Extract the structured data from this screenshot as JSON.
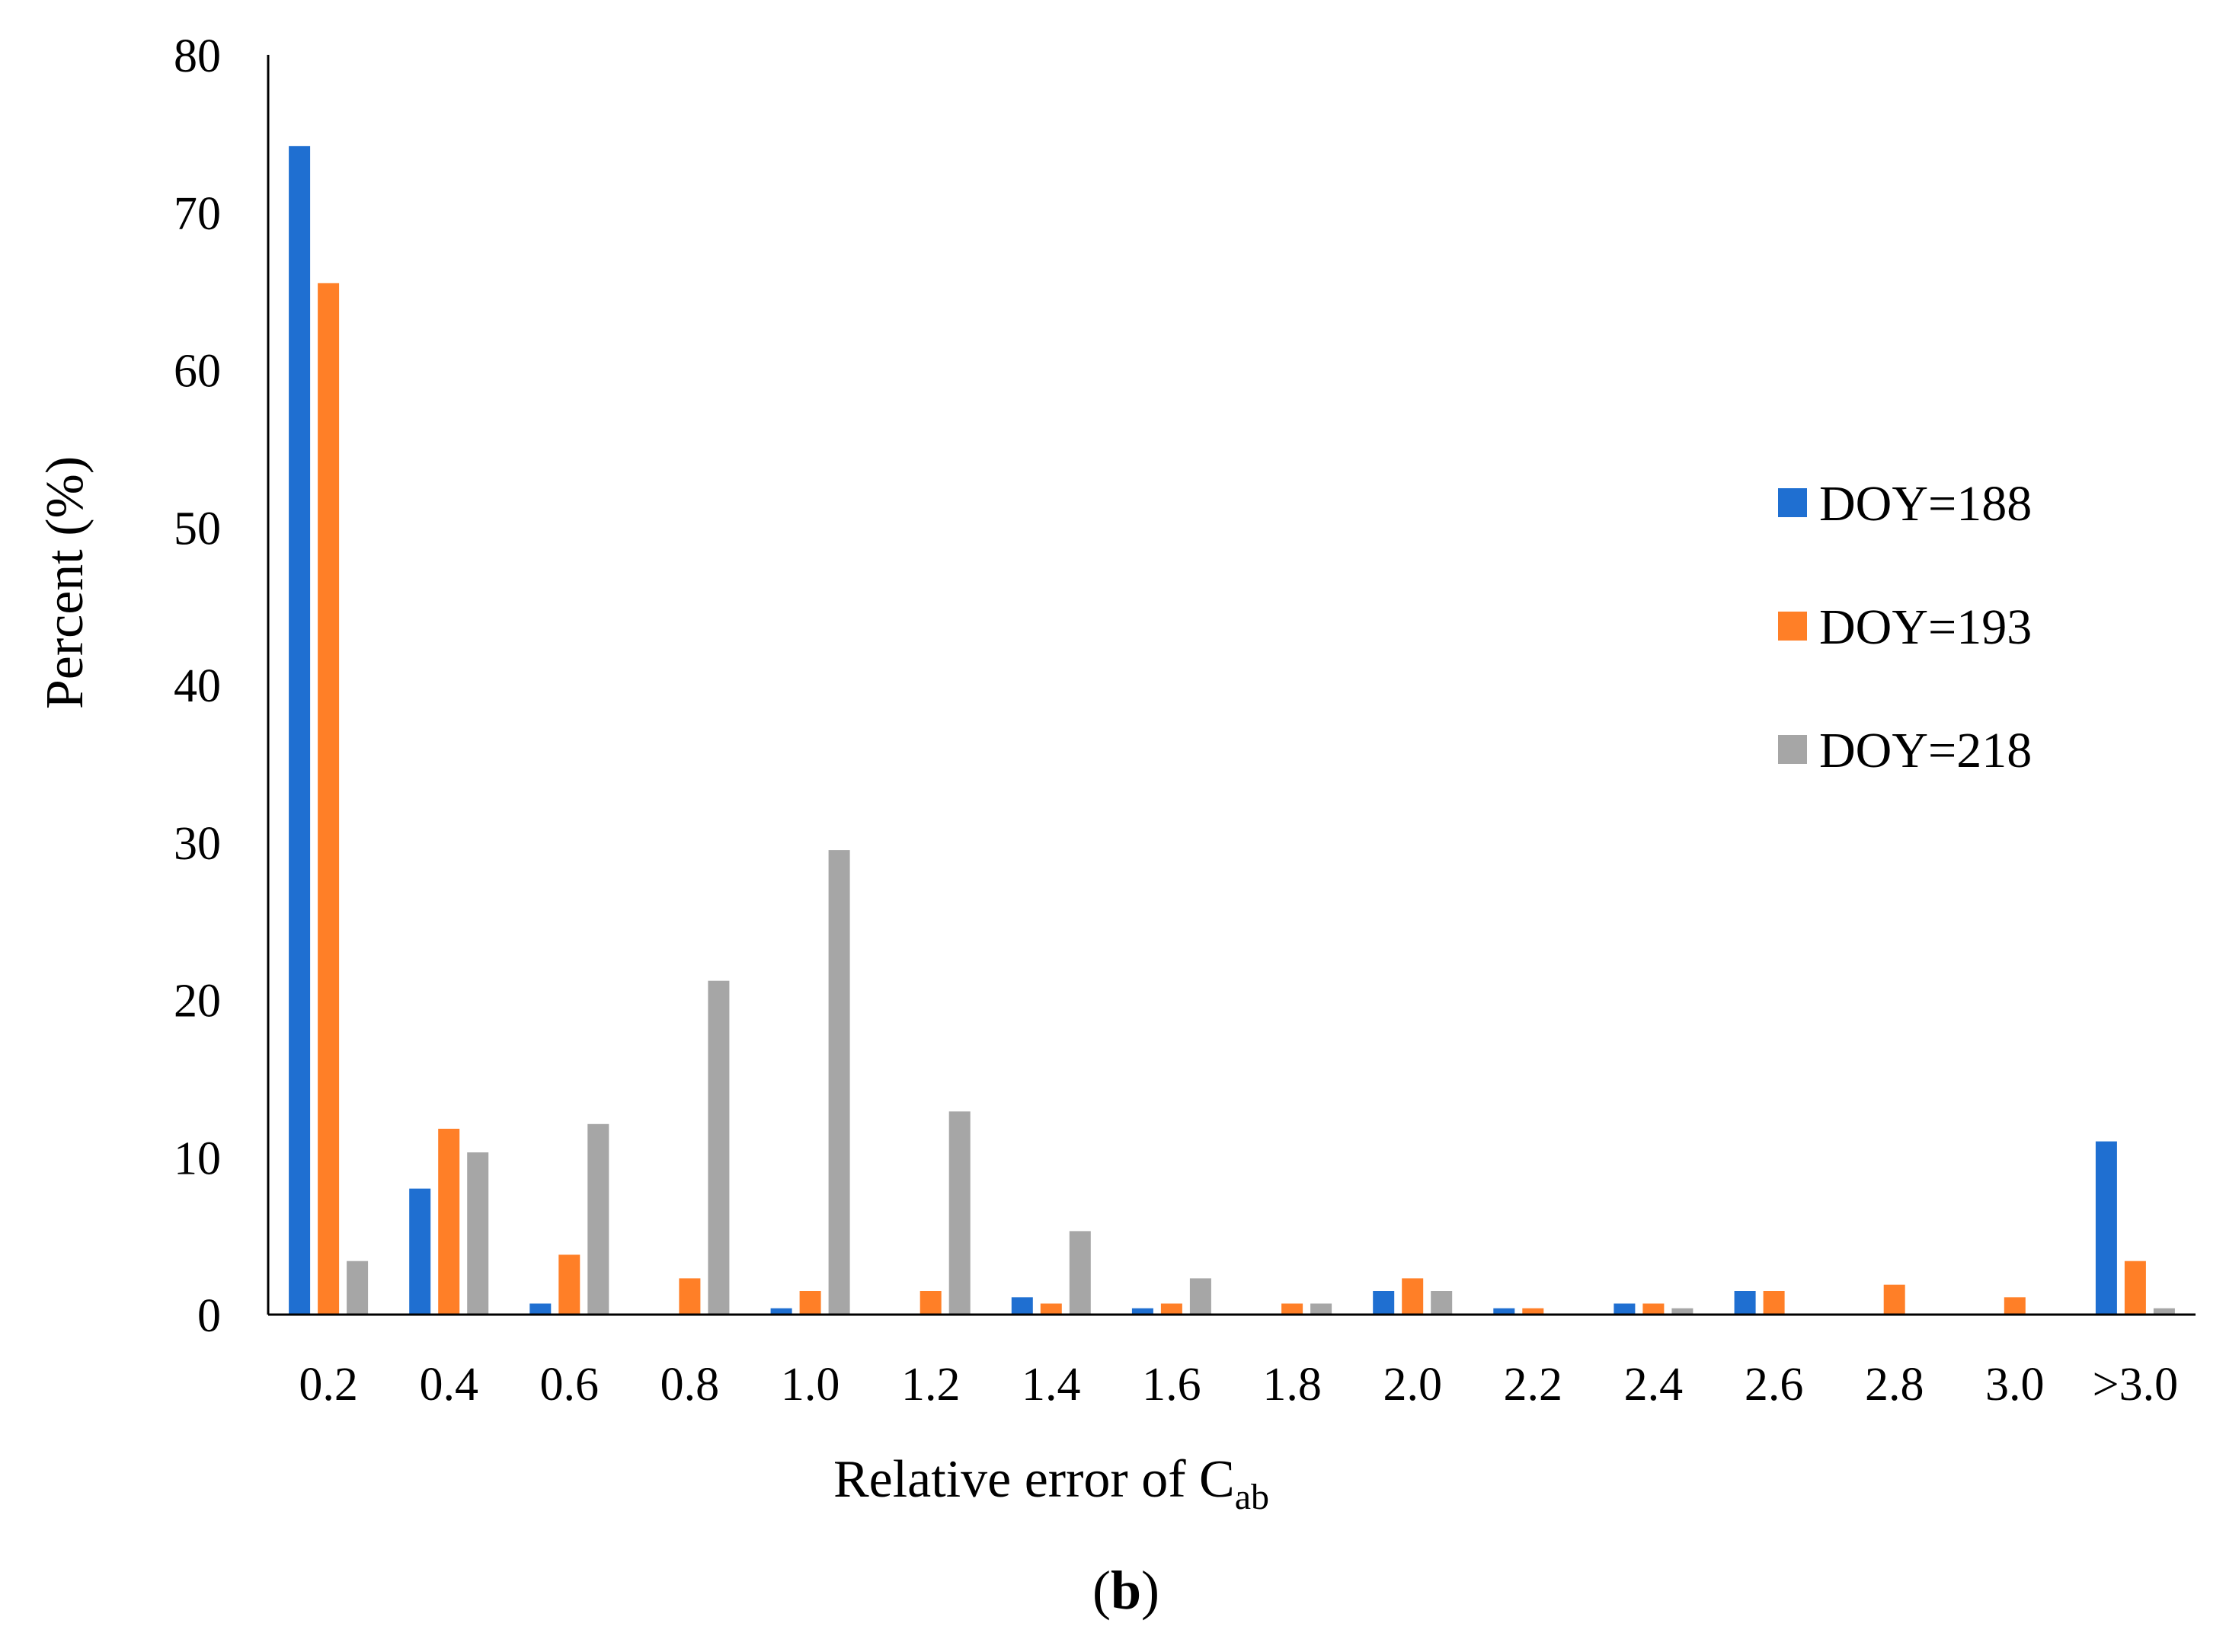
{
  "chart_data": {
    "type": "bar",
    "title": "",
    "panel_label": {
      "open": "(",
      "letter": "b",
      "close": ")"
    },
    "xlabel": {
      "main": "Relative error of C",
      "subscript": "ab"
    },
    "ylabel": "Percent (%)",
    "ylim": [
      0,
      80
    ],
    "yticks": [
      0,
      10,
      20,
      30,
      40,
      50,
      60,
      70,
      80
    ],
    "grid": false,
    "legend_position": "right",
    "categories": [
      "0.2",
      "0.4",
      "0.6",
      "0.8",
      "1.0",
      "1.2",
      "1.4",
      "1.6",
      "1.8",
      "2.0",
      "2.2",
      "2.4",
      "2.6",
      "2.8",
      "3.0",
      ">3.0"
    ],
    "series": [
      {
        "name": "DOY=188",
        "color": "#1f6fd1",
        "values": [
          74.2,
          8.0,
          0.7,
          0.0,
          0.4,
          0.0,
          1.1,
          0.4,
          0.0,
          1.5,
          0.4,
          0.7,
          1.5,
          0.0,
          0.0,
          11.0
        ]
      },
      {
        "name": "DOY=193",
        "color": "#ff7f27",
        "values": [
          65.5,
          11.8,
          3.8,
          2.3,
          1.5,
          1.5,
          0.7,
          0.7,
          0.7,
          2.3,
          0.4,
          0.7,
          1.5,
          1.9,
          1.1,
          3.4
        ]
      },
      {
        "name": "DOY=218",
        "color": "#a6a6a6",
        "values": [
          3.4,
          10.3,
          12.1,
          21.2,
          29.5,
          12.9,
          5.3,
          2.3,
          0.7,
          1.5,
          0.0,
          0.4,
          0.0,
          0.0,
          0.0,
          0.4
        ]
      }
    ]
  }
}
